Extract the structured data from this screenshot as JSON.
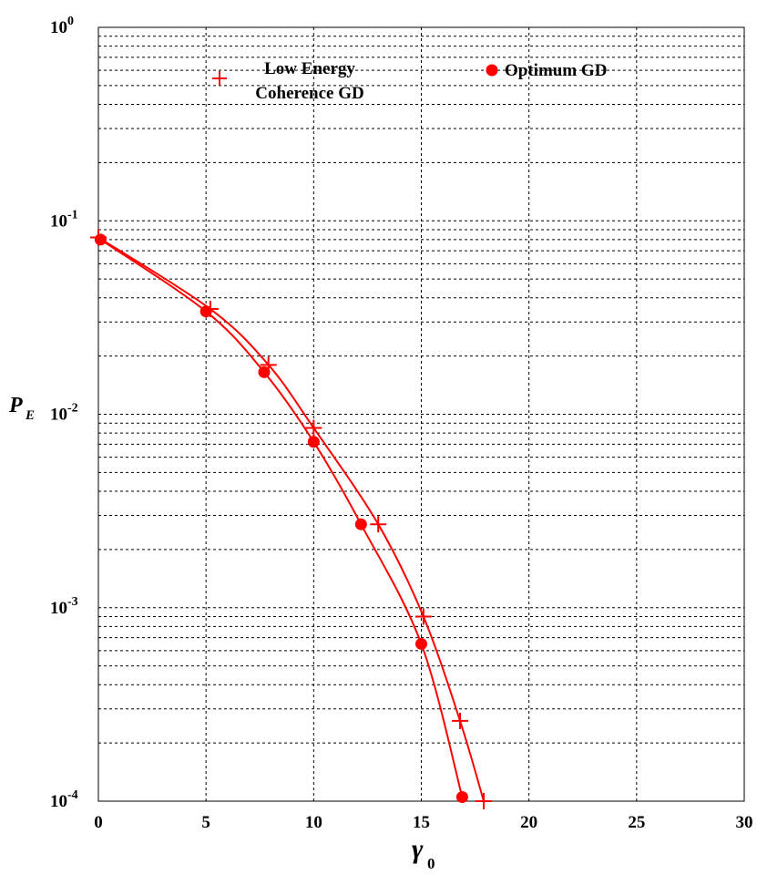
{
  "chart_data": {
    "type": "line",
    "xlabel": "γ",
    "xlabel_sub": "0",
    "ylabel": "P",
    "ylabel_sub": "E",
    "xlim": [
      0,
      30
    ],
    "ylim": [
      0.0001,
      1
    ],
    "y_scale": "log",
    "grid": true,
    "legend_position": "top",
    "x_ticks": [
      {
        "value": 0,
        "label": "0"
      },
      {
        "value": 5,
        "label": "5"
      },
      {
        "value": 10,
        "label": "10"
      },
      {
        "value": 15,
        "label": "15"
      },
      {
        "value": 20,
        "label": "20"
      },
      {
        "value": 25,
        "label": "25"
      },
      {
        "value": 30,
        "label": "30"
      }
    ],
    "y_ticks": [
      {
        "value": 1,
        "base": "10",
        "exp": "0"
      },
      {
        "value": 0.1,
        "base": "10",
        "exp": "-1"
      },
      {
        "value": 0.01,
        "base": "10",
        "exp": "-2"
      },
      {
        "value": 0.001,
        "base": "10",
        "exp": "-3"
      },
      {
        "value": 0.0001,
        "base": "10",
        "exp": "-4"
      }
    ],
    "series": [
      {
        "name": "Low Energy Coherence GD",
        "legend_lines": [
          "Low Energy",
          "Coherence GD"
        ],
        "marker": "plus",
        "color": "#ff0000",
        "x": [
          0,
          5.2,
          7.9,
          10,
          13,
          15.1,
          16.8,
          17.9
        ],
        "y": [
          0.082,
          0.035,
          0.018,
          0.0085,
          0.0027,
          0.0009,
          0.00026,
          0.0001
        ]
      },
      {
        "name": "Optimum GD",
        "legend_lines": [
          "Optimum GD"
        ],
        "marker": "circle",
        "color": "#ff0000",
        "x": [
          0.1,
          5,
          7.7,
          10,
          12.2,
          15,
          16.9
        ],
        "y": [
          0.08,
          0.034,
          0.0165,
          0.0072,
          0.0027,
          0.00065,
          0.000105
        ]
      }
    ]
  }
}
